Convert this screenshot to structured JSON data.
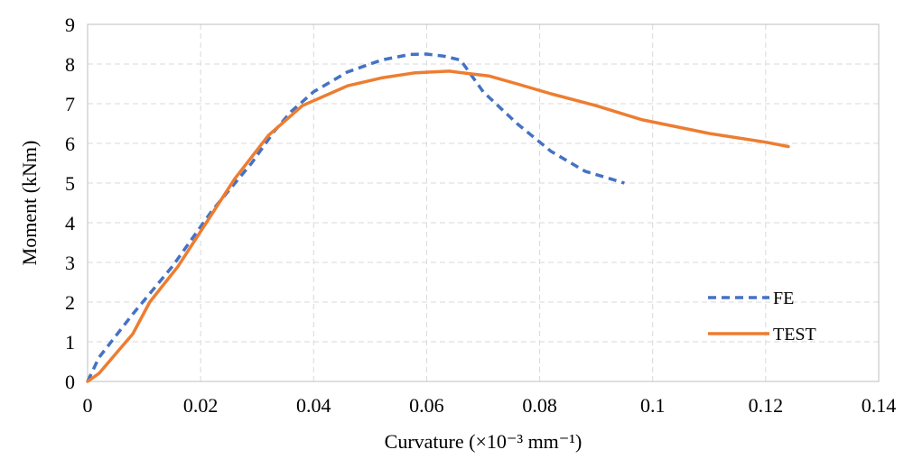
{
  "chart_data": {
    "type": "line",
    "title": "",
    "xlabel": "Curvature (×10⁻³ mm⁻¹)",
    "ylabel": "Moment (kNm)",
    "xlim": [
      0,
      0.14
    ],
    "ylim": [
      0,
      9
    ],
    "x_ticks": [
      "0",
      "0.02",
      "0.04",
      "0.06",
      "0.08",
      "0.1",
      "0.12",
      "0.14"
    ],
    "y_ticks": [
      "0",
      "1",
      "2",
      "3",
      "4",
      "5",
      "6",
      "7",
      "8",
      "9"
    ],
    "grid": true,
    "legend": "bottom-right",
    "series": [
      {
        "name": "FE",
        "color": "#4472c4",
        "style": "dashed",
        "x": [
          0,
          0.002,
          0.008,
          0.015,
          0.022,
          0.029,
          0.033,
          0.036,
          0.04,
          0.046,
          0.052,
          0.057,
          0.06,
          0.063,
          0.066,
          0.07,
          0.076,
          0.082,
          0.088,
          0.095
        ],
        "y": [
          0,
          0.6,
          1.7,
          2.9,
          4.3,
          5.5,
          6.3,
          6.8,
          7.3,
          7.8,
          8.1,
          8.24,
          8.25,
          8.2,
          8.1,
          7.3,
          6.5,
          5.8,
          5.3,
          5.0
        ]
      },
      {
        "name": "TEST",
        "color": "#ed7d31",
        "style": "solid",
        "x": [
          0,
          0.002,
          0.008,
          0.011,
          0.016,
          0.021,
          0.026,
          0.032,
          0.038,
          0.046,
          0.052,
          0.058,
          0.064,
          0.068,
          0.071,
          0.076,
          0.082,
          0.09,
          0.098,
          0.11,
          0.12,
          0.124
        ],
        "y": [
          0,
          0.2,
          1.2,
          2.0,
          2.9,
          4.0,
          5.1,
          6.2,
          6.95,
          7.45,
          7.65,
          7.78,
          7.82,
          7.75,
          7.7,
          7.5,
          7.25,
          6.95,
          6.6,
          6.25,
          6.03,
          5.92
        ]
      }
    ]
  }
}
